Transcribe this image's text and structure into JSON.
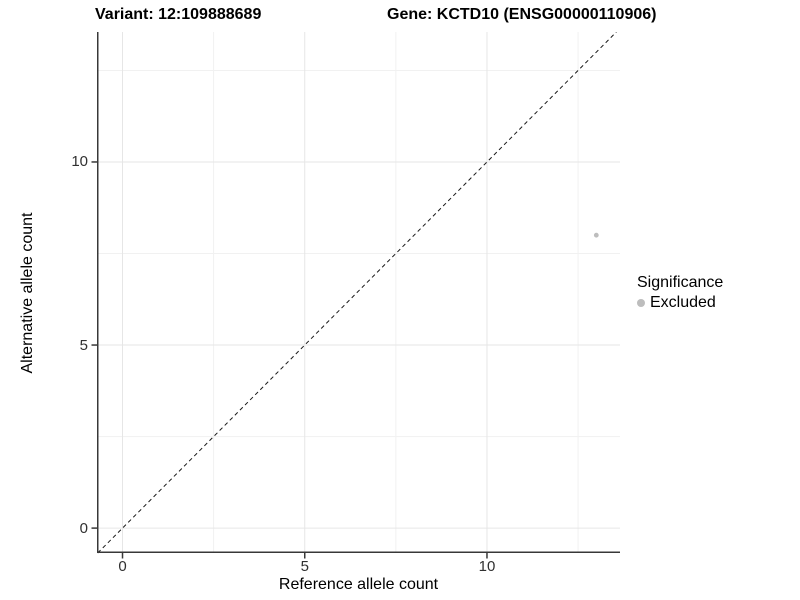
{
  "chart_data": {
    "type": "scatter",
    "title_left": "Variant: 12:109888689",
    "title_right": "Gene: KCTD10 (ENSG00000110906)",
    "xlabel": "Reference allele count",
    "ylabel": "Alternative allele count",
    "xlim": [
      -0.7,
      13.65
    ],
    "ylim": [
      -0.68,
      13.55
    ],
    "x_major_ticks": [
      0,
      5,
      10
    ],
    "y_major_ticks": [
      0,
      5,
      10
    ],
    "x_minor_ticks": [
      2.5,
      7.5,
      12.5
    ],
    "y_minor_ticks": [
      2.5,
      7.5,
      12.5
    ],
    "grid": true,
    "points": [
      {
        "x": 13,
        "y": 8,
        "series": "Excluded"
      }
    ],
    "reference_line": {
      "type": "identity",
      "style": "dashed",
      "color": "#1a1a1a"
    },
    "legend": {
      "title": "Significance",
      "position": "right",
      "entries": [
        {
          "label": "Excluded",
          "color": "#bdbdbd"
        }
      ]
    },
    "colors": {
      "point": "#bdbdbd",
      "grid_major": "#e6e6e6",
      "grid_minor": "#f1f1f1",
      "axis_line": "#383838",
      "tick_label": "#303030",
      "background": "#ffffff"
    }
  }
}
